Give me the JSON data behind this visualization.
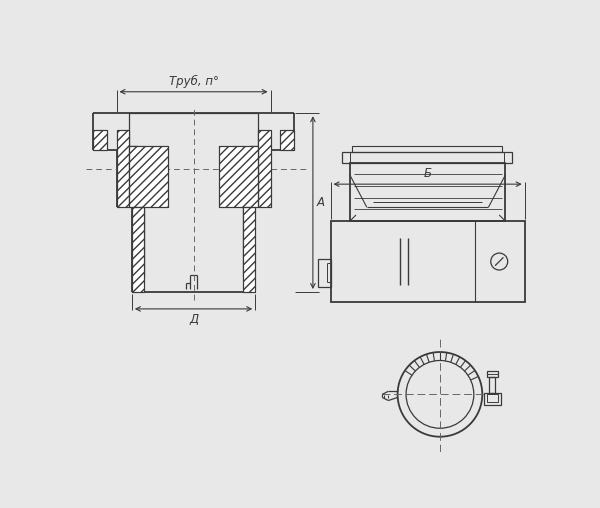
{
  "bg_color": "#e8e8e8",
  "line_color": "#3a3a3a",
  "text_color": "#3a3a3a",
  "font_size": 8.5,
  "label_trub": "Труб, п°",
  "label_a": "А",
  "label_d": "Д",
  "label_b": "Б"
}
